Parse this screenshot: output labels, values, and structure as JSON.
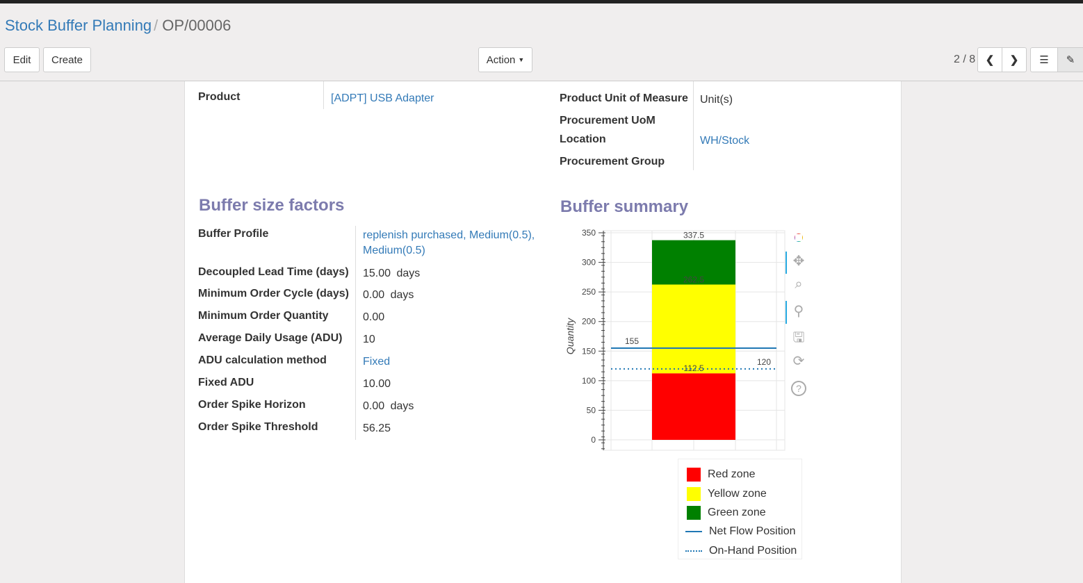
{
  "breadcrumb": {
    "parent": "Stock Buffer Planning",
    "current": "OP/00006"
  },
  "toolbar": {
    "edit": "Edit",
    "create": "Create",
    "action": "Action",
    "pager": "2 / 8"
  },
  "fields": {
    "product_label": "Product",
    "product_value": "[ADPT] USB Adapter",
    "uom_label": "Product Unit of Measure",
    "uom_value": "Unit(s)",
    "proc_uom_label": "Procurement UoM",
    "location_label": "Location",
    "location_value": "WH/Stock",
    "proc_group_label": "Procurement Group"
  },
  "factors": {
    "title": "Buffer size factors",
    "rows": [
      {
        "label": "Buffer Profile",
        "value": "replenish purchased, Medium(0.5), Medium(0.5)",
        "unit": "",
        "link": true
      },
      {
        "label": "Decoupled Lead Time (days)",
        "value": "15.00",
        "unit": "days"
      },
      {
        "label": "Minimum Order Cycle (days)",
        "value": "0.00",
        "unit": "days"
      },
      {
        "label": "Minimum Order Quantity",
        "value": "0.00",
        "unit": ""
      },
      {
        "label": "Average Daily Usage (ADU)",
        "value": "10",
        "unit": ""
      },
      {
        "label": "ADU calculation method",
        "value": "Fixed",
        "unit": "",
        "link": true
      },
      {
        "label": "Fixed ADU",
        "value": "10.00",
        "unit": ""
      },
      {
        "label": "Order Spike Horizon",
        "value": "0.00",
        "unit": "days"
      },
      {
        "label": "Order Spike Threshold",
        "value": "56.25",
        "unit": ""
      }
    ]
  },
  "summary": {
    "title": "Buffer summary"
  },
  "chart_data": {
    "type": "bar",
    "ylabel": "Quantity",
    "ylim": [
      -17,
      354
    ],
    "yticks": [
      0,
      50,
      100,
      150,
      200,
      250,
      300,
      350
    ],
    "grid": true,
    "stack": [
      {
        "name": "Red zone",
        "from": 0,
        "to": 112.5,
        "color": "#ff0000",
        "label": "112.5"
      },
      {
        "name": "Yellow zone",
        "from": 112.5,
        "to": 262.5,
        "color": "#ffff00",
        "label": "262.5"
      },
      {
        "name": "Green zone",
        "from": 262.5,
        "to": 337.5,
        "color": "#008000",
        "label": "337.5"
      }
    ],
    "lines": [
      {
        "name": "Net Flow Position",
        "value": 155,
        "style": "solid",
        "color": "#1f77b4",
        "label": "155"
      },
      {
        "name": "On-Hand Position",
        "value": 120,
        "style": "dotted",
        "color": "#1f77b4",
        "label": "120"
      }
    ],
    "legend_placement": "bottom"
  },
  "chart_tools": [
    "bokeh-logo",
    "pan-icon",
    "box-zoom-icon",
    "wheel-zoom-icon",
    "save-icon",
    "reset-icon",
    "help-icon"
  ]
}
